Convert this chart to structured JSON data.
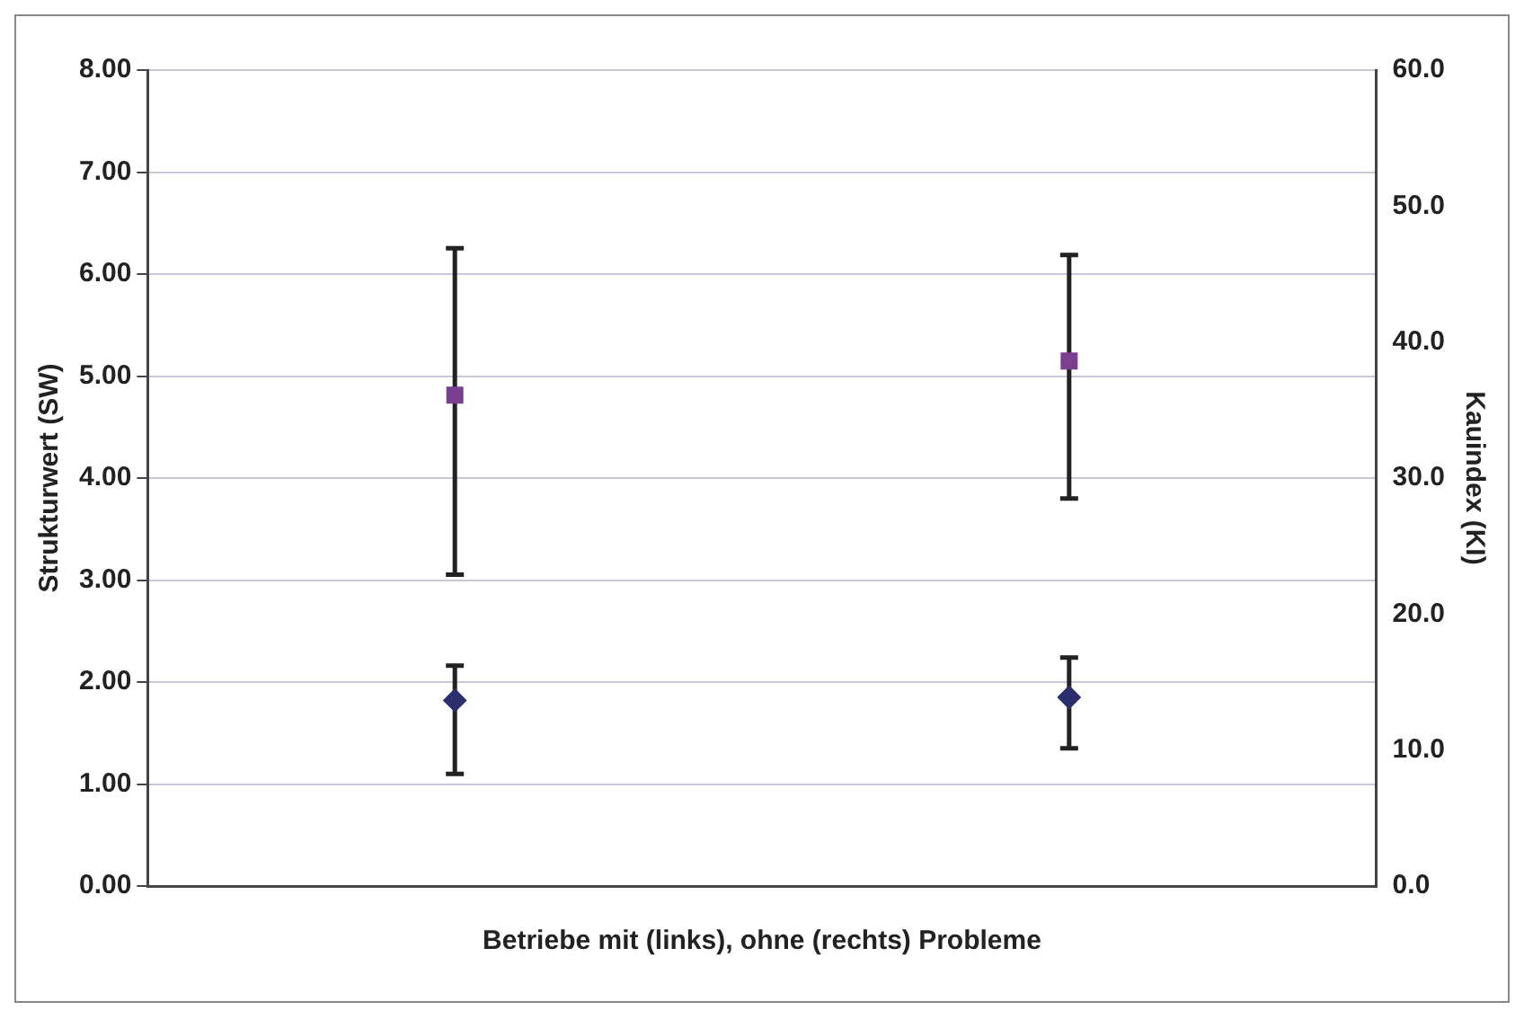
{
  "chart_data": {
    "type": "scatter",
    "xlabel": "Betriebe mit (links), ohne (rechts) Probleme",
    "ylabel": "Strukturwert (SW)",
    "y2label": "Kauindex (KI)",
    "categories": [
      null,
      null
    ],
    "series": [
      {
        "color": "#7b3f8f",
        "marker": "square",
        "axis": "y2",
        "values": [
          36.1,
          38.6
        ],
        "errors": [
          [
            22.9,
            46.9
          ],
          [
            28.5,
            46.4
          ]
        ]
      },
      {
        "color": "#2b2f6e",
        "marker": "diamond",
        "values": [
          1.82,
          1.85
        ],
        "errors": [
          [
            1.1,
            2.16
          ],
          [
            1.35,
            2.24
          ]
        ]
      }
    ],
    "ylim": [
      0,
      8
    ],
    "yticks": [
      {
        "value": 0,
        "label": "0.00"
      },
      {
        "value": 1,
        "label": "1.00"
      },
      {
        "value": 2,
        "label": "2.00"
      },
      {
        "value": 3,
        "label": "3.00"
      },
      {
        "value": 4,
        "label": "4.00"
      },
      {
        "value": 5,
        "label": "5.00"
      },
      {
        "value": 6,
        "label": "6.00"
      },
      {
        "value": 7,
        "label": "7.00"
      },
      {
        "value": 8,
        "label": "8.00"
      }
    ],
    "y2lim": [
      0,
      60
    ],
    "y2ticks": [
      {
        "value": 0,
        "label": "0.0"
      },
      {
        "value": 10,
        "label": "10.0"
      },
      {
        "value": 20,
        "label": "20.0"
      },
      {
        "value": 30,
        "label": "30.0"
      },
      {
        "value": 40,
        "label": "40.0"
      },
      {
        "value": 50,
        "label": "50.0"
      },
      {
        "value": 60,
        "label": "60.0"
      }
    ],
    "grid": "y",
    "legend": false
  }
}
